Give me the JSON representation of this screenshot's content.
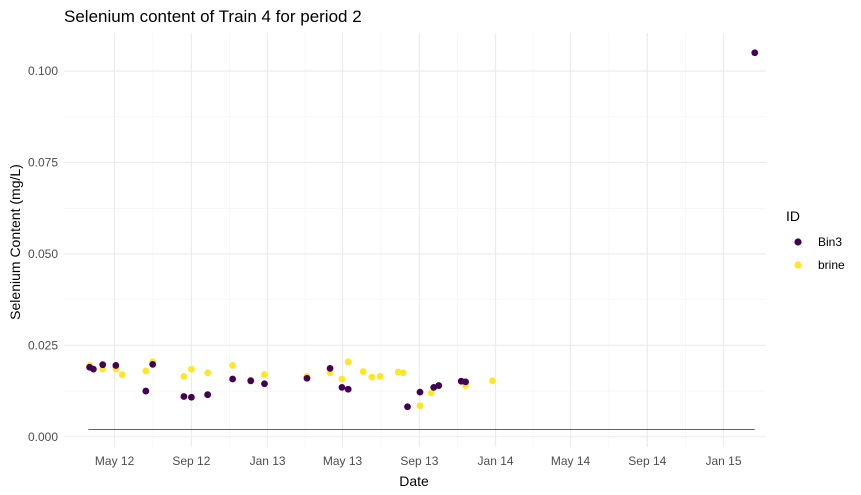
{
  "chart_data": {
    "type": "scatter",
    "title": "Selenium content of Train 4 for period 2",
    "xlabel": "Date",
    "ylabel": "Selenium Content (mg/L)",
    "x_type": "date",
    "xlim": [
      "2012-02-10",
      "2015-03-10"
    ],
    "ylim": [
      -0.0028,
      0.1104
    ],
    "x_ticks": [
      {
        "date": "2012-05-01",
        "label": "May 12"
      },
      {
        "date": "2012-09-01",
        "label": "Sep 12"
      },
      {
        "date": "2013-01-01",
        "label": "Jan 13"
      },
      {
        "date": "2013-05-01",
        "label": "May 13"
      },
      {
        "date": "2013-09-01",
        "label": "Sep 13"
      },
      {
        "date": "2014-01-01",
        "label": "Jan 14"
      },
      {
        "date": "2014-05-01",
        "label": "May 14"
      },
      {
        "date": "2014-09-01",
        "label": "Sep 14"
      },
      {
        "date": "2015-01-01",
        "label": "Jan 15"
      }
    ],
    "y_ticks": [
      {
        "value": 0.0,
        "label": "0.000"
      },
      {
        "value": 0.025,
        "label": "0.025"
      },
      {
        "value": 0.05,
        "label": "0.050"
      },
      {
        "value": 0.075,
        "label": "0.075"
      },
      {
        "value": 0.1,
        "label": "0.100"
      }
    ],
    "grid": true,
    "legend": {
      "title": "ID",
      "position": "right"
    },
    "series": [
      {
        "name": "Bin3",
        "color": "#440154",
        "points": [
          {
            "x": "2012-03-22",
            "y": 0.019
          },
          {
            "x": "2012-03-28",
            "y": 0.0185
          },
          {
            "x": "2012-04-12",
            "y": 0.0197
          },
          {
            "x": "2012-05-03",
            "y": 0.0195
          },
          {
            "x": "2012-06-20",
            "y": 0.0125
          },
          {
            "x": "2012-07-01",
            "y": 0.0198
          },
          {
            "x": "2012-08-20",
            "y": 0.011
          },
          {
            "x": "2012-09-01",
            "y": 0.0108
          },
          {
            "x": "2012-09-27",
            "y": 0.0115
          },
          {
            "x": "2012-11-06",
            "y": 0.0158
          },
          {
            "x": "2012-12-05",
            "y": 0.0153
          },
          {
            "x": "2012-12-27",
            "y": 0.0145
          },
          {
            "x": "2013-03-05",
            "y": 0.016
          },
          {
            "x": "2013-04-11",
            "y": 0.0187
          },
          {
            "x": "2013-04-30",
            "y": 0.0135
          },
          {
            "x": "2013-05-10",
            "y": 0.013
          },
          {
            "x": "2013-08-13",
            "y": 0.0082
          },
          {
            "x": "2013-09-02",
            "y": 0.0122
          },
          {
            "x": "2013-09-24",
            "y": 0.0135
          },
          {
            "x": "2013-10-02",
            "y": 0.014
          },
          {
            "x": "2013-11-07",
            "y": 0.0152
          },
          {
            "x": "2013-11-14",
            "y": 0.015
          },
          {
            "x": "2015-02-20",
            "y": 0.105
          }
        ]
      },
      {
        "name": "brine",
        "color": "#FDE725",
        "points": [
          {
            "x": "2012-03-22",
            "y": 0.0195
          },
          {
            "x": "2012-04-12",
            "y": 0.0185
          },
          {
            "x": "2012-05-03",
            "y": 0.0185
          },
          {
            "x": "2012-05-13",
            "y": 0.017
          },
          {
            "x": "2012-06-20",
            "y": 0.018
          },
          {
            "x": "2012-07-01",
            "y": 0.0205
          },
          {
            "x": "2012-08-20",
            "y": 0.0165
          },
          {
            "x": "2012-09-01",
            "y": 0.0185
          },
          {
            "x": "2012-09-27",
            "y": 0.0175
          },
          {
            "x": "2012-11-06",
            "y": 0.0195
          },
          {
            "x": "2012-12-05",
            "y": 0.0155
          },
          {
            "x": "2012-12-27",
            "y": 0.017
          },
          {
            "x": "2013-03-05",
            "y": 0.0165
          },
          {
            "x": "2013-04-11",
            "y": 0.0175
          },
          {
            "x": "2013-04-30",
            "y": 0.0158
          },
          {
            "x": "2013-05-10",
            "y": 0.0205
          },
          {
            "x": "2013-06-03",
            "y": 0.0178
          },
          {
            "x": "2013-06-17",
            "y": 0.0163
          },
          {
            "x": "2013-06-30",
            "y": 0.0165
          },
          {
            "x": "2013-07-29",
            "y": 0.0177
          },
          {
            "x": "2013-08-06",
            "y": 0.0175
          },
          {
            "x": "2013-09-02",
            "y": 0.0085
          },
          {
            "x": "2013-09-20",
            "y": 0.012
          },
          {
            "x": "2013-11-14",
            "y": 0.014
          },
          {
            "x": "2013-12-27",
            "y": 0.0153
          }
        ]
      }
    ],
    "reference_lines": [
      {
        "color": "#B22222",
        "y": 0.002,
        "x_start": "2012-03-20",
        "x_end": "2013-12-27"
      },
      {
        "color": "#B22222",
        "y": 0.002,
        "x_start": "2013-12-27",
        "x_end": "2015-02-20"
      }
    ]
  }
}
